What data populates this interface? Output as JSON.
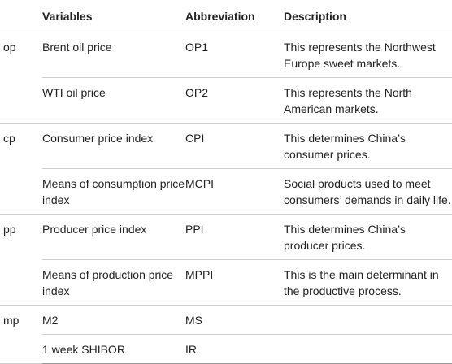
{
  "headers": {
    "group": "",
    "variables": "Variables",
    "abbreviation": "Abbreviation",
    "description": "Description"
  },
  "rows": [
    {
      "group": "op",
      "variable": "Brent oil price",
      "abbreviation": "OP1",
      "description": "This represents the Northwest Europe sweet markets."
    },
    {
      "group": "",
      "variable": "WTI oil price",
      "abbreviation": "OP2",
      "description": "This represents the North American markets."
    },
    {
      "group": "cp",
      "variable": "Consumer price index",
      "abbreviation": "CPI",
      "description": "This determines China’s consumer prices."
    },
    {
      "group": "",
      "variable": "Means of consumption price index",
      "abbreviation": "MCPI",
      "description": "Social products used to meet consumers’ demands in daily life."
    },
    {
      "group": "pp",
      "variable": "Producer price index",
      "abbreviation": "PPI",
      "description": "This determines China’s producer prices."
    },
    {
      "group": "",
      "variable": "Means of production price index",
      "abbreviation": "MPPI",
      "description": "This is the main determinant in the productive process."
    },
    {
      "group": "mp",
      "variable": "M2",
      "abbreviation": "MS",
      "description": ""
    },
    {
      "group": "",
      "variable": "1 week SHIBOR",
      "abbreviation": "IR",
      "description": ""
    }
  ]
}
